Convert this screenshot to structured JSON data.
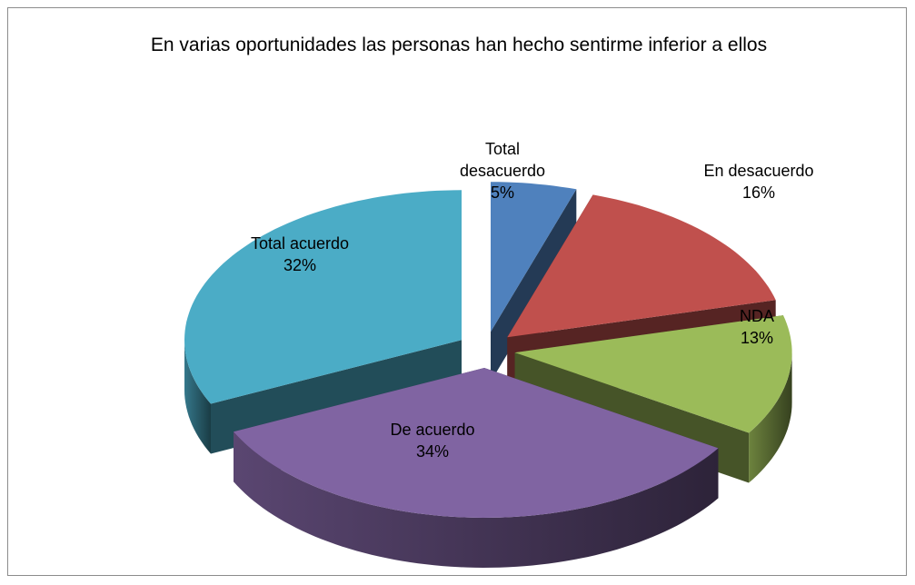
{
  "chart_data": {
    "type": "pie",
    "title": "En varias oportunidades las personas  han hecho sentirme inferior a ellos",
    "categories": [
      "Total desacuerdo",
      "En desacuerdo",
      "NDA",
      "De acuerdo",
      "Total acuerdo"
    ],
    "values": [
      5,
      16,
      13,
      34,
      32
    ],
    "value_labels": [
      "5%",
      "16%",
      "13%",
      "34%",
      "32%"
    ],
    "colors": [
      "#4f81bd",
      "#c0504d",
      "#9bbb59",
      "#8064a2",
      "#4bacc6"
    ],
    "three_d": true,
    "exploded": true
  }
}
